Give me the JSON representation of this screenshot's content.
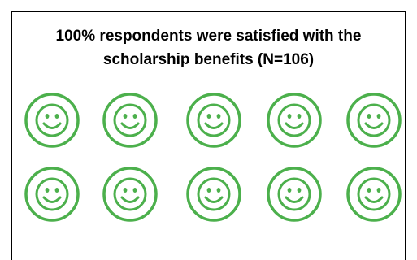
{
  "chart_data": {
    "type": "pictogram",
    "title_lines": [
      "100% respondents were satisfied with the",
      "scholarship benefits (N=106)"
    ],
    "icon": "smiley-face-icon",
    "total_icons": 10,
    "filled_icons": 10,
    "rows": 2,
    "columns": 5,
    "percent_satisfied": 100,
    "n_respondents": 106,
    "icon_color": "#4CB04C",
    "legend": "none",
    "grid": false
  }
}
